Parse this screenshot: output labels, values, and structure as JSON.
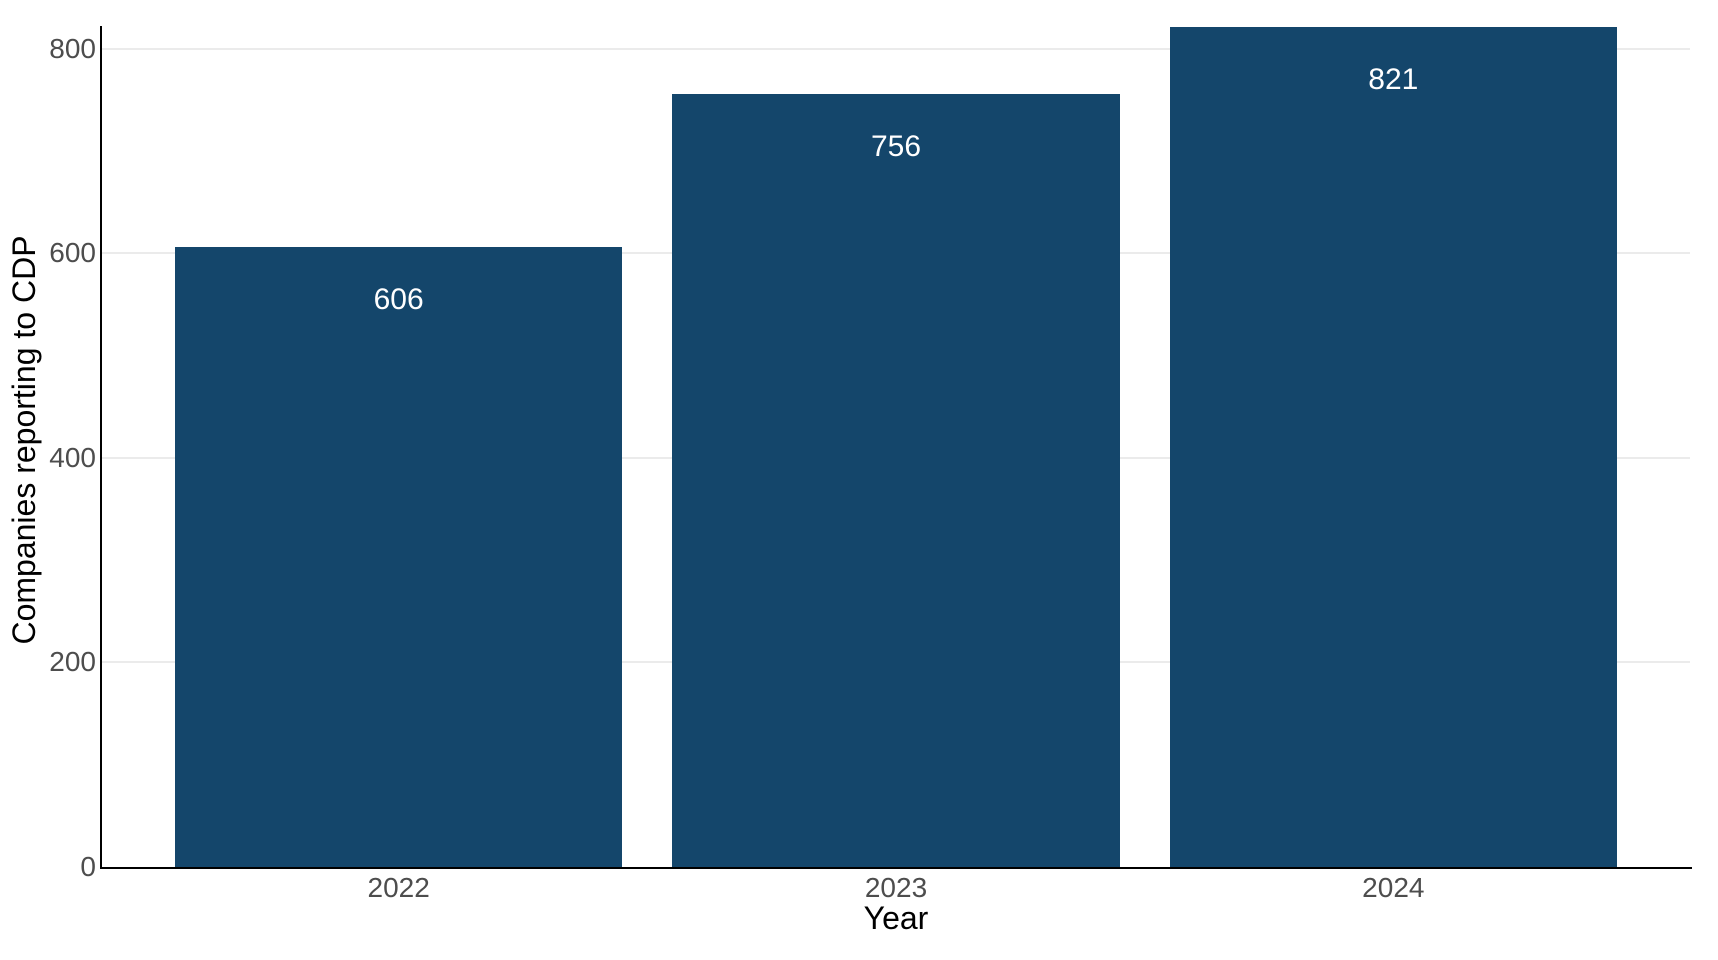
{
  "chart_data": {
    "type": "bar",
    "title": "",
    "categories": [
      "2022",
      "2023",
      "2024"
    ],
    "values": [
      606,
      756,
      821
    ],
    "xlabel": "Year",
    "ylabel": "Companies reporting to CDP",
    "yticks": [
      0,
      200,
      400,
      600,
      800
    ],
    "ylim": [
      0,
      822
    ],
    "grid": "horizontal gridlines only",
    "legend_position": "none",
    "bar_label_position": "inside-top",
    "colors": {
      "bar_fill": "#14466b",
      "bar_label_text": "#ffffff",
      "tick_label_text": "#4d4d4d",
      "axis_title_text": "#000000",
      "axis_line": "#000000",
      "gridline": "#ebebeb",
      "background": "#ffffff"
    }
  }
}
